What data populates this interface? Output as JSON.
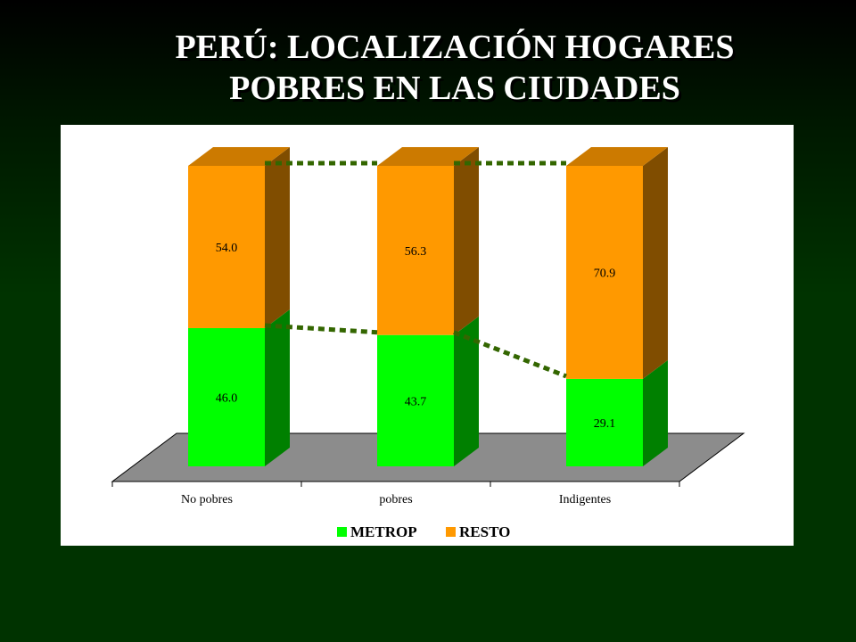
{
  "slide": {
    "title_line1": "PERÚ: LOCALIZACIÓN HOGARES",
    "title_line2": "POBRES EN LAS CIUDADES"
  },
  "chart_data": {
    "type": "bar",
    "stacked": true,
    "three_d": true,
    "categories": [
      "No pobres",
      "pobres",
      "Indigentes"
    ],
    "series": [
      {
        "name": "METROP",
        "color": "#00ff00",
        "values": [
          46.0,
          43.7,
          29.1
        ],
        "labels": [
          "46.0",
          "43.7",
          "29.1"
        ]
      },
      {
        "name": "RESTO",
        "color": "#ff9900",
        "values": [
          54.0,
          56.3,
          70.9
        ],
        "labels": [
          "54.0",
          "56.3",
          "70.9"
        ]
      }
    ],
    "ylim": [
      0,
      100
    ],
    "legend_position": "bottom",
    "trend_line_color": "#336600"
  }
}
